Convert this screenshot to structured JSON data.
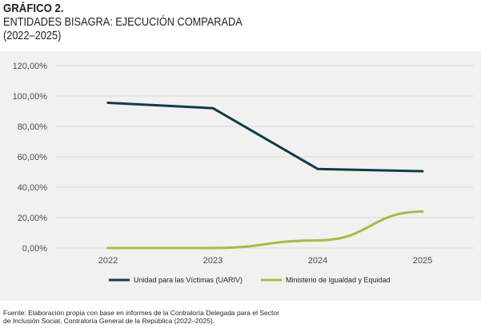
{
  "header": {
    "line1": "GRÁFICO 2.",
    "line2": "ENTIDADES BISAGRA: EJECUCIÓN COMPARADA",
    "line3": "(2022–2025)"
  },
  "chart_data": {
    "type": "line",
    "categories": [
      "2022",
      "2023",
      "2024",
      "2025"
    ],
    "series": [
      {
        "name": "Unidad para las Víctimas (UARIV)",
        "values": [
          95.5,
          92,
          52,
          50.5
        ],
        "color": "#0f3d4a"
      },
      {
        "name": "Ministerio de Igualdad y Equidad",
        "values": [
          0,
          0,
          5,
          24
        ],
        "color": "#a2bd45"
      }
    ],
    "ylim": [
      0,
      120
    ],
    "yticks": [
      "0,00%",
      "20,00%",
      "40,00%",
      "60,00%",
      "80,00%",
      "100,00%",
      "120,00%"
    ],
    "ytick_values": [
      0,
      20,
      40,
      60,
      80,
      100,
      120
    ],
    "grid": true,
    "legend": "bottom",
    "title": "",
    "xlabel": "",
    "ylabel": ""
  },
  "source": {
    "line1": "Fuente: Elaboración propia con base en informes de la Contraloría Delegada para el Sector",
    "line2": "de Inclusión Social, Contraloría General de la República (2022–2025)."
  }
}
